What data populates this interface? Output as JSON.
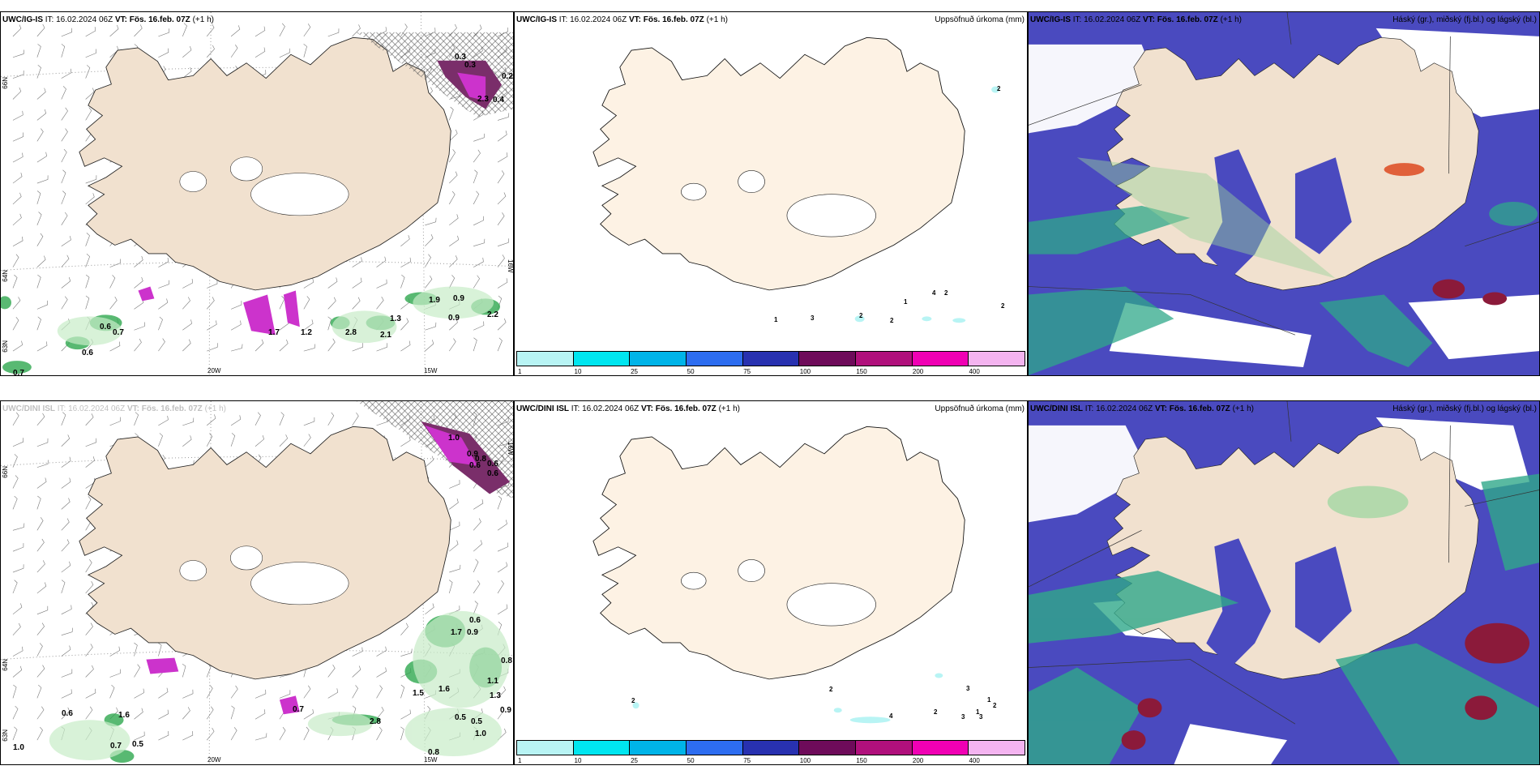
{
  "panels": {
    "p1": {
      "model": "UWC/IG-IS",
      "it": "IT: 16.02.2024 06Z",
      "vt_label": "VT:",
      "vt": "Fös. 16.feb. 07Z",
      "lead": "(+1 h)",
      "lat_66": "66N",
      "lat_64": "64N",
      "lat_63": "63N",
      "lon_20": "20W",
      "lon_15": "15W",
      "lon_right": "16W",
      "values": [
        "0.3",
        "0.3",
        "0.2",
        "2.3",
        "0.4",
        "0.6",
        "0.7",
        "0.6",
        "0.7",
        "1.7",
        "1.2",
        "2.8",
        "1.3",
        "2.1",
        "1.9",
        "0.9",
        "0.9",
        "2.2"
      ]
    },
    "p2": {
      "model": "UWC/IG-IS",
      "it": "IT: 16.02.2024 06Z",
      "vt_label": "VT:",
      "vt": "Fös. 16.feb. 07Z",
      "lead": "(+1 h)",
      "right": "Uppsöfnuð úrkoma (mm)",
      "values": [
        "2",
        "1",
        "3",
        "2",
        "2",
        "4",
        "2",
        "1",
        "2"
      ]
    },
    "p3": {
      "model": "UWC/IG-IS",
      "it": "IT: 16.02.2024 06Z",
      "vt_label": "VT:",
      "vt": "Fös. 16.feb. 07Z",
      "lead": "(+1 h)",
      "right": "Háský (gr.), miðský (fj.bl.) og lágský (bl.)"
    },
    "p4": {
      "model": "UWC/DINI ISL",
      "it": "IT: 16.02.2024 06Z",
      "vt_label": "VT:",
      "vt": "Fös. 16.feb. 07Z",
      "lead": "(+1 h)",
      "lat_66": "66N",
      "lat_64": "64N",
      "lat_63": "63N",
      "lon_20": "20W",
      "lon_15": "15W",
      "lon_right": "16W",
      "values": [
        "1.0",
        "0.9",
        "0.8",
        "0.6",
        "0.6",
        "0.6",
        "1.7",
        "0.9",
        "0.6",
        "0.8",
        "1.5",
        "1.6",
        "1.1",
        "1.3",
        "0.9",
        "0.7",
        "1.6",
        "0.7",
        "0.5",
        "0.6",
        "2.8",
        "0.5",
        "0.5",
        "1.0",
        "0.8",
        "1.0"
      ]
    },
    "p5": {
      "model": "UWC/DINI ISL",
      "it": "IT: 16.02.2024 06Z",
      "vt_label": "VT:",
      "vt": "Fös. 16.feb. 07Z",
      "lead": "(+1 h)",
      "right": "Uppsöfnuð úrkoma (mm)",
      "values": [
        "2",
        "2",
        "3",
        "1",
        "1",
        "2",
        "2",
        "4",
        "3",
        "3"
      ]
    },
    "p6": {
      "model": "UWC/DINI ISL",
      "it": "IT: 16.02.2024 06Z",
      "vt_label": "VT:",
      "vt": "Fös. 16.feb. 07Z",
      "lead": "(+1 h)",
      "right": "Háský (gr.), miðský (fj.bl.) og lágský (bl.)"
    }
  },
  "colorbar": {
    "ticks": [
      "1",
      "10",
      "25",
      "50",
      "75",
      "100",
      "150",
      "200",
      "400"
    ],
    "colors": [
      "#b8f4f4",
      "#00e6f0",
      "#00b4e8",
      "#2d6df0",
      "#2831b0",
      "#6e0b5a",
      "#b0107c",
      "#f000b4",
      "#f4b4f0"
    ]
  },
  "colors": {
    "land": "#f1e1cf",
    "land_light": "#fdf2e4",
    "precip_green": "#2fa84f",
    "precip_magenta": "#cc33cc",
    "cloud_blue": "#4a4abf",
    "cloud_green": "#2fa88a"
  }
}
